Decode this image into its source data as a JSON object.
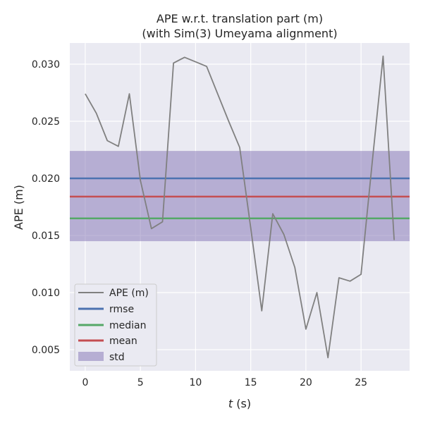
{
  "chart_data": {
    "type": "line",
    "title": "APE w.r.t. translation part (m)",
    "subtitle": "(with Sim(3) Umeyama alignment)",
    "xlabel_italic": "t",
    "xlabel_unit": " (s)",
    "ylabel": "APE (m)",
    "xlim": [
      -1.4,
      29.4
    ],
    "ylim": [
      0.00315,
      0.03185
    ],
    "xticks": [
      0,
      5,
      10,
      15,
      20,
      25
    ],
    "yticks": [
      0.005,
      0.01,
      0.015,
      0.02,
      0.025,
      0.03
    ],
    "ytick_labels": [
      "0.005",
      "0.010",
      "0.015",
      "0.020",
      "0.025",
      "0.030"
    ],
    "grid": true,
    "legend_position": "lower-left",
    "series": [
      {
        "name": "APE (m)",
        "color": "#808080",
        "x": [
          0,
          1,
          2,
          3,
          4,
          5,
          6,
          7,
          8,
          9,
          10,
          11,
          12,
          13,
          14,
          15,
          16,
          17,
          18,
          19,
          20,
          21,
          22,
          23,
          24,
          25,
          26,
          27,
          28
        ],
        "y": [
          0.0274,
          0.0257,
          0.0233,
          0.0228,
          0.0274,
          0.0198,
          0.0156,
          0.0162,
          0.0301,
          0.0306,
          0.0302,
          0.0298,
          0.0274,
          0.025,
          0.0227,
          0.0157,
          0.0084,
          0.0169,
          0.0151,
          0.0122,
          0.0068,
          0.01,
          0.0043,
          0.0113,
          0.011,
          0.0116,
          0.0213,
          0.0307,
          0.0146
        ]
      }
    ],
    "stats": {
      "rmse": {
        "name": "rmse",
        "value": 0.02,
        "color": "#4c72b0"
      },
      "median": {
        "name": "median",
        "value": 0.0165,
        "color": "#55a868"
      },
      "mean": {
        "name": "mean",
        "value": 0.0184,
        "color": "#c44e52"
      },
      "std": {
        "name": "std",
        "low": 0.0145,
        "high": 0.0224,
        "color": "#8172b3"
      }
    }
  }
}
